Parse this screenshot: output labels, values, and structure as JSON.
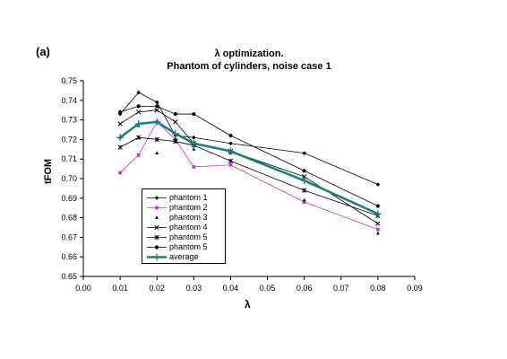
{
  "panel_label": "(a)",
  "chart_data": {
    "type": "line",
    "title": "λ optimization.",
    "subtitle": "Phantom of cylinders, noise case 1",
    "xlabel": "λ",
    "ylabel": "tFOM",
    "xlim": [
      0.0,
      0.09
    ],
    "ylim": [
      0.65,
      0.75
    ],
    "x_ticks": [
      "0.00",
      "0.01",
      "0.02",
      "0.03",
      "0.04",
      "0.05",
      "0.06",
      "0.07",
      "0.08",
      "0.09"
    ],
    "y_ticks": [
      "0.65",
      "0.66",
      "0.67",
      "0.68",
      "0.69",
      "0.70",
      "0.71",
      "0.72",
      "0.73",
      "0.74",
      "0.75"
    ],
    "grid": false,
    "legend_position": "lower-left",
    "series": [
      {
        "name": "phantom 1",
        "color": "#000000",
        "marker": "diamond",
        "line": true,
        "x": [
          0.01,
          0.015,
          0.02,
          0.025,
          0.03,
          0.04,
          0.06,
          0.08
        ],
        "y": [
          0.733,
          0.744,
          0.739,
          0.722,
          0.721,
          0.718,
          0.713,
          0.697
        ]
      },
      {
        "name": "phantom 2",
        "color": "#cc33cc",
        "marker": "square",
        "line": true,
        "x": [
          0.01,
          0.015,
          0.02,
          0.025,
          0.03,
          0.04,
          0.06,
          0.08
        ],
        "y": [
          0.703,
          0.712,
          0.729,
          0.72,
          0.706,
          0.707,
          0.688,
          0.674
        ]
      },
      {
        "name": "phantom 3",
        "color": "#000000",
        "marker": "triangle",
        "line": false,
        "x": [
          0.01,
          0.015,
          0.02,
          0.025,
          0.03,
          0.04,
          0.06,
          0.08
        ],
        "y": [
          0.721,
          0.727,
          0.713,
          0.72,
          0.715,
          0.713,
          0.689,
          0.672
        ]
      },
      {
        "name": "phantom 4",
        "color": "#000000",
        "marker": "x",
        "line": true,
        "x": [
          0.01,
          0.015,
          0.02,
          0.025,
          0.03,
          0.04,
          0.06,
          0.08
        ],
        "y": [
          0.728,
          0.734,
          0.735,
          0.729,
          0.718,
          0.714,
          0.701,
          0.677
        ]
      },
      {
        "name": "phantom 5",
        "color": "#000000",
        "marker": "star",
        "line": true,
        "x": [
          0.01,
          0.015,
          0.02,
          0.025,
          0.03,
          0.04,
          0.06,
          0.08
        ],
        "y": [
          0.716,
          0.721,
          0.72,
          0.719,
          0.717,
          0.709,
          0.694,
          0.681
        ]
      },
      {
        "name": "phantom 5",
        "color": "#000000",
        "marker": "circle",
        "line": true,
        "x": [
          0.01,
          0.015,
          0.02,
          0.025,
          0.03,
          0.04,
          0.06,
          0.08
        ],
        "y": [
          0.734,
          0.737,
          0.737,
          0.733,
          0.733,
          0.722,
          0.704,
          0.686
        ]
      },
      {
        "name": "average",
        "color": "#1f7f7f",
        "marker": "plus",
        "line": true,
        "thick": true,
        "x": [
          0.01,
          0.015,
          0.02,
          0.025,
          0.03,
          0.04,
          0.06,
          0.08
        ],
        "y": [
          0.721,
          0.728,
          0.729,
          0.723,
          0.718,
          0.714,
          0.699,
          0.682
        ]
      }
    ]
  }
}
